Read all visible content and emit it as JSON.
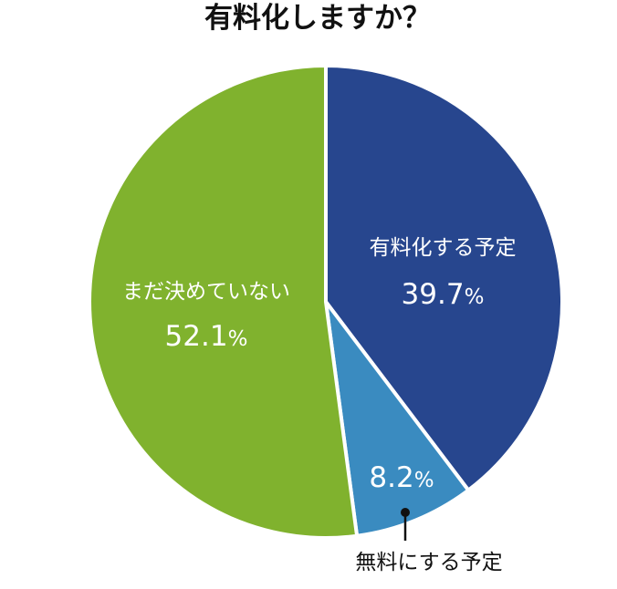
{
  "chart_data": {
    "type": "pie",
    "title": "有料化しますか？",
    "unit": "%",
    "slices": [
      {
        "label": "有料化する予定",
        "value": 39.7,
        "value_text": "39.7",
        "color": "#27468E"
      },
      {
        "label": "無料にする予定",
        "value": 8.2,
        "value_text": "8.2",
        "color": "#3A8BC0"
      },
      {
        "label": "まだ決めていない",
        "value": 52.1,
        "value_text": "52.1",
        "color": "#80B22E"
      }
    ]
  }
}
